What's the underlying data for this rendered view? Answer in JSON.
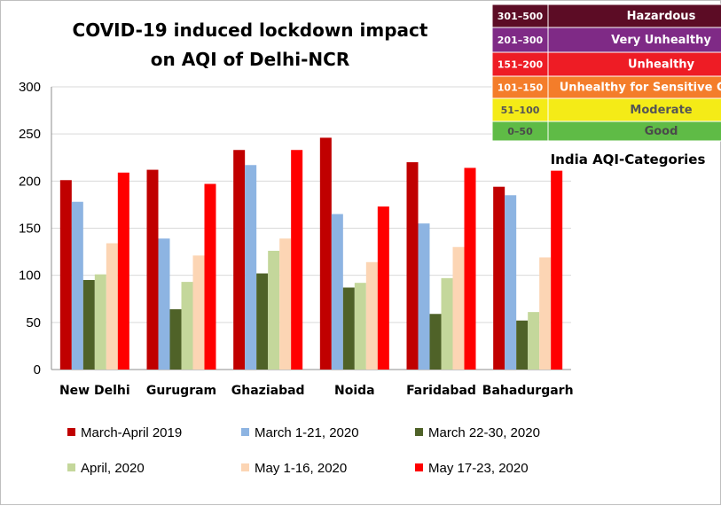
{
  "chart_data": {
    "type": "bar",
    "title_lines": [
      "COVID-19 induced lockdown impact",
      "on AQI of Delhi-NCR"
    ],
    "categories": [
      "New Delhi",
      "Gurugram",
      "Ghaziabad",
      "Noida",
      "Faridabad",
      "Bahadurgarh"
    ],
    "series": [
      {
        "name": "March-April 2019",
        "color": "#c00000",
        "values": [
          201,
          212,
          233,
          246,
          220,
          194
        ]
      },
      {
        "name": "March 1-21, 2020",
        "color": "#8db4e2",
        "values": [
          178,
          139,
          217,
          165,
          155,
          185
        ]
      },
      {
        "name": "March 22-30, 2020",
        "color": "#4f6228",
        "values": [
          95,
          64,
          102,
          87,
          59,
          52
        ]
      },
      {
        "name": "April, 2020",
        "color": "#c4d79b",
        "values": [
          101,
          93,
          126,
          92,
          97,
          61
        ]
      },
      {
        "name": "May 1-16, 2020",
        "color": "#fcd5b4",
        "values": [
          134,
          121,
          139,
          114,
          130,
          119
        ]
      },
      {
        "name": "May 17-23, 2020",
        "color": "#ff0000",
        "values": [
          209,
          197,
          233,
          173,
          214,
          211
        ]
      }
    ],
    "ylim": [
      0,
      300
    ],
    "yticks": [
      0,
      50,
      100,
      150,
      200,
      250,
      300
    ],
    "legend_position": "bottom",
    "grid": true
  },
  "aqi_table": {
    "caption": "India AQI-Categories",
    "rows": [
      {
        "range": "301–500",
        "label": "Hazardous",
        "bg": "#5c0c25",
        "fg": "#ffffff"
      },
      {
        "range": "201–300",
        "label": "Very Unhealthy",
        "bg": "#7f2a86",
        "fg": "#ffffff"
      },
      {
        "range": "151–200",
        "label": "Unhealthy",
        "bg": "#ee1c25",
        "fg": "#ffffff"
      },
      {
        "range": "101–150",
        "label": "Unhealthy for Sensitive Groups",
        "bg": "#f47d2a",
        "fg": "#ffffff"
      },
      {
        "range": "51–100",
        "label": "Moderate",
        "bg": "#f4eb17",
        "fg": "#555555"
      },
      {
        "range": "0–50",
        "label": "Good",
        "bg": "#5fbb46",
        "fg": "#4a4a4a"
      }
    ]
  }
}
